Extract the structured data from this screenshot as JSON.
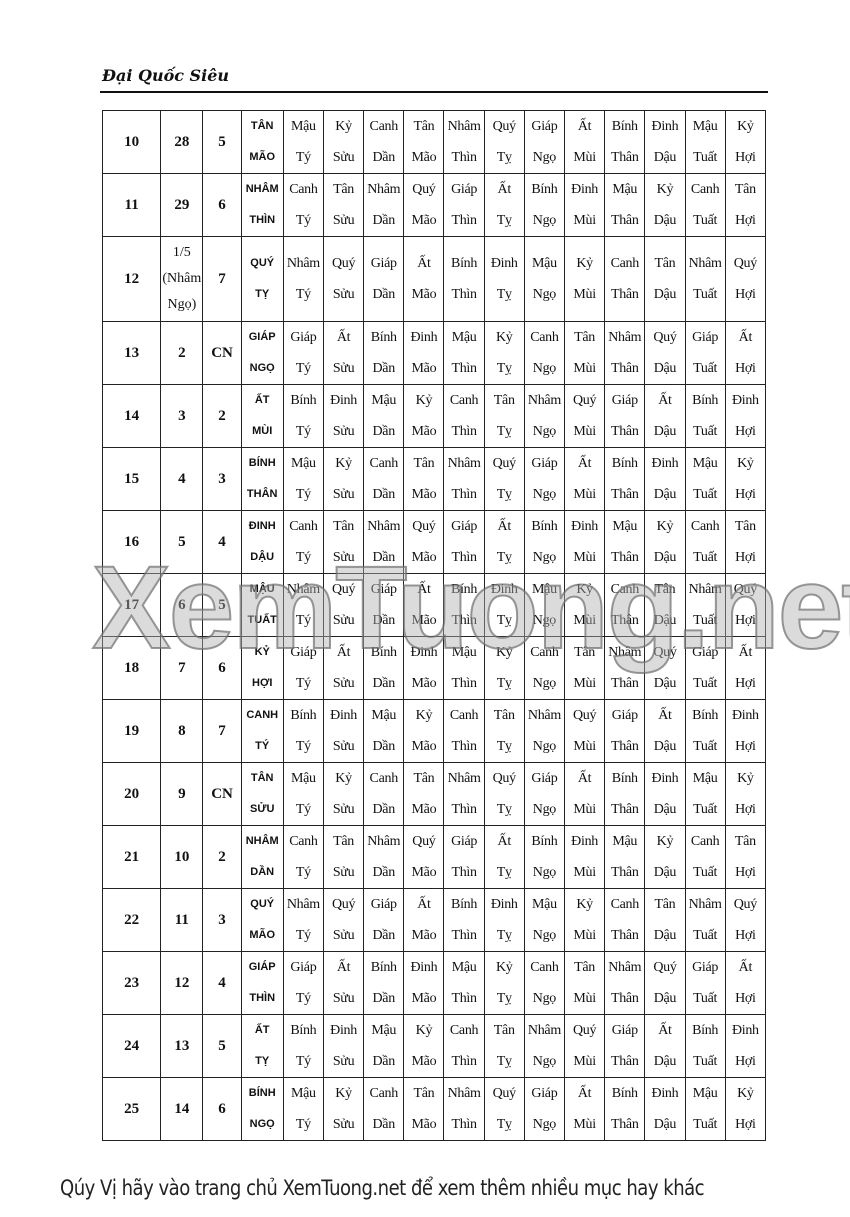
{
  "header": {
    "title": "Đại Quốc Siêu"
  },
  "branches": [
    "Tý",
    "Sửu",
    "Dần",
    "Mão",
    "Thìn",
    "Tỵ",
    "Ngọ",
    "Mùi",
    "Thân",
    "Dậu",
    "Tuất",
    "Hợi"
  ],
  "rows": [
    {
      "day": "10",
      "lunar": "28",
      "weekday": "5",
      "canchi": [
        "TÂN",
        "MÃO"
      ],
      "hours": [
        "Mậu",
        "Kỷ",
        "Canh",
        "Tân",
        "Nhâm",
        "Quý",
        "Giáp",
        "Ất",
        "Bính",
        "Đinh",
        "Mậu",
        "Kỷ"
      ]
    },
    {
      "day": "11",
      "lunar": "29",
      "weekday": "6",
      "canchi": [
        "NHÂM",
        "THÌN"
      ],
      "hours": [
        "Canh",
        "Tân",
        "Nhâm",
        "Quý",
        "Giáp",
        "Ất",
        "Bính",
        "Đinh",
        "Mậu",
        "Kỷ",
        "Canh",
        "Tân"
      ]
    },
    {
      "day": "12",
      "lunar": "1/5 (Nhâm Ngọ)",
      "weekday": "7",
      "canchi": [
        "QUÝ",
        "TỴ"
      ],
      "hours": [
        "Nhâm",
        "Quý",
        "Giáp",
        "Ất",
        "Bính",
        "Đinh",
        "Mậu",
        "Kỷ",
        "Canh",
        "Tân",
        "Nhâm",
        "Quý"
      ]
    },
    {
      "day": "13",
      "lunar": "2",
      "weekday": "CN",
      "canchi": [
        "GIÁP",
        "NGỌ"
      ],
      "hours": [
        "Giáp",
        "Ất",
        "Bính",
        "Đinh",
        "Mậu",
        "Kỷ",
        "Canh",
        "Tân",
        "Nhâm",
        "Quý",
        "Giáp",
        "Ất"
      ]
    },
    {
      "day": "14",
      "lunar": "3",
      "weekday": "2",
      "canchi": [
        "ẤT",
        "MÙI"
      ],
      "hours": [
        "Bính",
        "Đinh",
        "Mậu",
        "Kỷ",
        "Canh",
        "Tân",
        "Nhâm",
        "Quý",
        "Giáp",
        "Ất",
        "Bính",
        "Đinh"
      ]
    },
    {
      "day": "15",
      "lunar": "4",
      "weekday": "3",
      "canchi": [
        "BÍNH",
        "THÂN"
      ],
      "hours": [
        "Mậu",
        "Kỷ",
        "Canh",
        "Tân",
        "Nhâm",
        "Quý",
        "Giáp",
        "Ất",
        "Bính",
        "Đinh",
        "Mậu",
        "Kỷ"
      ]
    },
    {
      "day": "16",
      "lunar": "5",
      "weekday": "4",
      "canchi": [
        "ĐINH",
        "DẬU"
      ],
      "hours": [
        "Canh",
        "Tân",
        "Nhâm",
        "Quý",
        "Giáp",
        "Ất",
        "Bính",
        "Đinh",
        "Mậu",
        "Kỷ",
        "Canh",
        "Tân"
      ]
    },
    {
      "day": "17",
      "lunar": "6",
      "weekday": "5",
      "canchi": [
        "MẬU",
        "TUẤT"
      ],
      "hours": [
        "Nhâm",
        "Quý",
        "Giáp",
        "Ất",
        "Bính",
        "Đinh",
        "Mậu",
        "Kỷ",
        "Canh",
        "Tân",
        "Nhâm",
        "Quý"
      ]
    },
    {
      "day": "18",
      "lunar": "7",
      "weekday": "6",
      "canchi": [
        "KỶ",
        "HỢI"
      ],
      "hours": [
        "Giáp",
        "Ất",
        "Bính",
        "Đinh",
        "Mậu",
        "Kỷ",
        "Canh",
        "Tân",
        "Nhâm",
        "Quý",
        "Giáp",
        "Ất"
      ]
    },
    {
      "day": "19",
      "lunar": "8",
      "weekday": "7",
      "canchi": [
        "CANH",
        "TÝ"
      ],
      "hours": [
        "Bính",
        "Đinh",
        "Mậu",
        "Kỷ",
        "Canh",
        "Tân",
        "Nhâm",
        "Quý",
        "Giáp",
        "Ất",
        "Bính",
        "Đinh"
      ]
    },
    {
      "day": "20",
      "lunar": "9",
      "weekday": "CN",
      "canchi": [
        "TÂN",
        "SỬU"
      ],
      "hours": [
        "Mậu",
        "Kỷ",
        "Canh",
        "Tân",
        "Nhâm",
        "Quý",
        "Giáp",
        "Ất",
        "Bính",
        "Đinh",
        "Mậu",
        "Kỷ"
      ]
    },
    {
      "day": "21",
      "lunar": "10",
      "weekday": "2",
      "canchi": [
        "NHÂM",
        "DẦN"
      ],
      "hours": [
        "Canh",
        "Tân",
        "Nhâm",
        "Quý",
        "Giáp",
        "Ất",
        "Bính",
        "Đinh",
        "Mậu",
        "Kỷ",
        "Canh",
        "Tân"
      ]
    },
    {
      "day": "22",
      "lunar": "11",
      "weekday": "3",
      "canchi": [
        "QUÝ",
        "MÃO"
      ],
      "hours": [
        "Nhâm",
        "Quý",
        "Giáp",
        "Ất",
        "Bính",
        "Đinh",
        "Mậu",
        "Kỷ",
        "Canh",
        "Tân",
        "Nhâm",
        "Quý"
      ]
    },
    {
      "day": "23",
      "lunar": "12",
      "weekday": "4",
      "canchi": [
        "GIÁP",
        "THÌN"
      ],
      "hours": [
        "Giáp",
        "Ất",
        "Bính",
        "Đinh",
        "Mậu",
        "Kỷ",
        "Canh",
        "Tân",
        "Nhâm",
        "Quý",
        "Giáp",
        "Ất"
      ]
    },
    {
      "day": "24",
      "lunar": "13",
      "weekday": "5",
      "canchi": [
        "ẤT",
        "TỴ"
      ],
      "hours": [
        "Bính",
        "Đinh",
        "Mậu",
        "Kỷ",
        "Canh",
        "Tân",
        "Nhâm",
        "Quý",
        "Giáp",
        "Ất",
        "Bính",
        "Đinh"
      ]
    },
    {
      "day": "25",
      "lunar": "14",
      "weekday": "6",
      "canchi": [
        "BÍNH",
        "NGỌ"
      ],
      "hours": [
        "Mậu",
        "Kỷ",
        "Canh",
        "Tân",
        "Nhâm",
        "Quý",
        "Giáp",
        "Ất",
        "Bính",
        "Đinh",
        "Mậu",
        "Kỷ"
      ]
    }
  ],
  "watermark": "XemTuong.net",
  "footer": {
    "text": "Qúy Vị hãy vào trang chủ XemTuong.net để xem thêm nhiều mục hay khác"
  }
}
